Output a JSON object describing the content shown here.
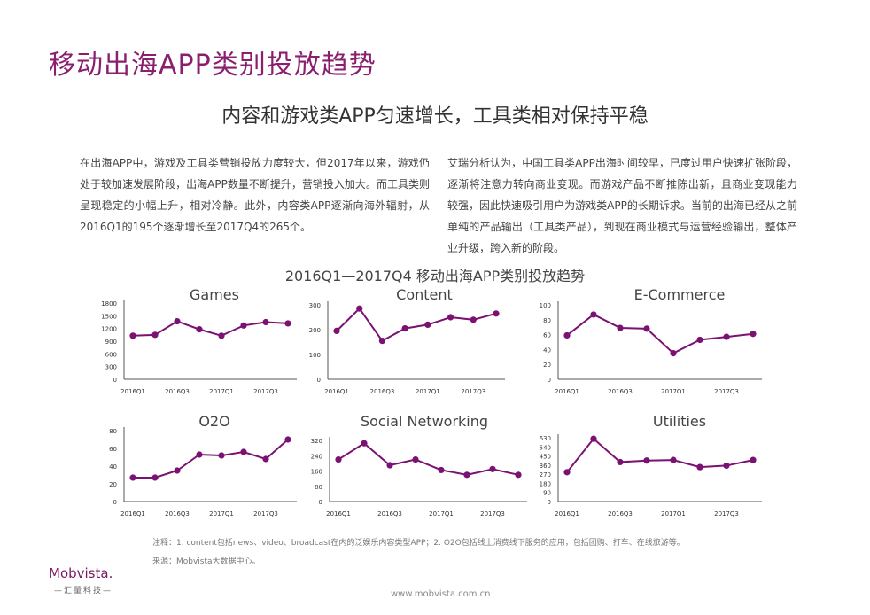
{
  "page": {
    "title": "移动出海APP类别投放趋势",
    "subtitle": "内容和游戏类APP匀速增长，工具类相对保持平稳",
    "para_left": "在出海APP中，游戏及工具类营销投放力度较大，但2017年以来，游戏仍处于较加速发展阶段，出海APP数量不断提升，营销投入加大。而工具类则呈现稳定的小幅上升，相对冷静。此外，内容类APP逐渐向海外辐射，从2016Q1的195个逐渐增长至2017Q4的265个。",
    "para_right": "艾瑞分析认为，中国工具类APP出海时间较早，已度过用户快速扩张阶段，逐渐将注意力转向商业变现。而游戏产品不断推陈出新，且商业变现能力较强，因此快速吸引用户为游戏类APP的长期诉求。当前的出海已经从之前单纯的产品输出（工具类产品），到现在商业模式与运营经验输出，整体产业升级，跨入新的阶段。",
    "chart_title": "2016Q1—2017Q4 移动出海APP类别投放趋势",
    "note": "注释：1. content包括news、video、broadcast在内的泛娱乐内容类型APP；2. O2O包括线上消费线下服务的应用，包括团购、打车、在线旅游等。",
    "source": "来源：Mobvista大数据中心。",
    "logo": "Mobvista.",
    "logo_sub": "—汇量科技—",
    "url": "www.mobvista.com.cn",
    "accent_color": "#8a1f6f",
    "line_color": "#7b1173"
  },
  "chart_data": [
    {
      "type": "line",
      "title": "Games",
      "x": [
        "2016Q1",
        "2016Q2",
        "2016Q3",
        "2016Q4",
        "2017Q1",
        "2017Q2",
        "2017Q3",
        "2017Q4"
      ],
      "x_tick_labels": [
        "2016Q1",
        "2016Q3",
        "2017Q1",
        "2017Q3"
      ],
      "values": [
        1030,
        1050,
        1370,
        1180,
        1030,
        1270,
        1350,
        1320
      ],
      "ylim": [
        0,
        1800
      ],
      "yticks": [
        0,
        300,
        600,
        900,
        1200,
        1500,
        1800
      ]
    },
    {
      "type": "line",
      "title": "Content",
      "x": [
        "2016Q1",
        "2016Q2",
        "2016Q3",
        "2016Q4",
        "2017Q1",
        "2017Q2",
        "2017Q3",
        "2017Q4"
      ],
      "x_tick_labels": [
        "2016Q1",
        "2016Q3",
        "2017Q1",
        "2017Q3"
      ],
      "values": [
        195,
        285,
        155,
        205,
        220,
        250,
        240,
        265
      ],
      "ylim": [
        0,
        300
      ],
      "yticks": [
        0,
        100,
        200,
        300
      ]
    },
    {
      "type": "line",
      "title": "E-Commerce",
      "x": [
        "2016Q1",
        "2016Q2",
        "2016Q3",
        "2016Q4",
        "2017Q1",
        "2017Q2",
        "2017Q3",
        "2017Q4"
      ],
      "x_tick_labels": [
        "2016Q1",
        "2016Q3",
        "2017Q1",
        "2017Q3"
      ],
      "values": [
        59,
        87,
        69,
        68,
        35,
        53,
        57,
        61
      ],
      "ylim": [
        0,
        100
      ],
      "yticks": [
        0,
        20,
        40,
        60,
        80,
        100
      ]
    },
    {
      "type": "line",
      "title": "O2O",
      "x": [
        "2016Q1",
        "2016Q2",
        "2016Q3",
        "2016Q4",
        "2017Q1",
        "2017Q2",
        "2017Q3",
        "2017Q4"
      ],
      "x_tick_labels": [
        "2016Q1",
        "2016Q3",
        "2017Q1",
        "2017Q3"
      ],
      "values": [
        27,
        27,
        35,
        53,
        52,
        56,
        48,
        70
      ],
      "ylim": [
        0,
        80
      ],
      "yticks": [
        0,
        20,
        40,
        60,
        80
      ]
    },
    {
      "type": "line",
      "title": "Social Networking",
      "x": [
        "2016Q1",
        "2016Q2",
        "2016Q3",
        "2016Q4",
        "2017Q1",
        "2017Q2",
        "2017Q3",
        "2017Q4"
      ],
      "x_tick_labels": [
        "2016Q1",
        "2016Q3",
        "2017Q1",
        "2017Q3"
      ],
      "values": [
        220,
        305,
        190,
        220,
        165,
        140,
        170,
        140
      ],
      "ylim": [
        0,
        320
      ],
      "yticks": [
        0,
        80,
        160,
        240,
        320
      ]
    },
    {
      "type": "line",
      "title": "Utilities",
      "x": [
        "2016Q1",
        "2016Q2",
        "2016Q3",
        "2016Q4",
        "2017Q1",
        "2017Q2",
        "2017Q3",
        "2017Q4"
      ],
      "x_tick_labels": [
        "2016Q1",
        "2016Q3",
        "2017Q1",
        "2017Q3"
      ],
      "values": [
        290,
        620,
        390,
        405,
        410,
        340,
        355,
        410
      ],
      "ylim": [
        0,
        630
      ],
      "yticks": [
        0,
        90,
        180,
        270,
        360,
        450,
        540,
        630
      ]
    }
  ]
}
